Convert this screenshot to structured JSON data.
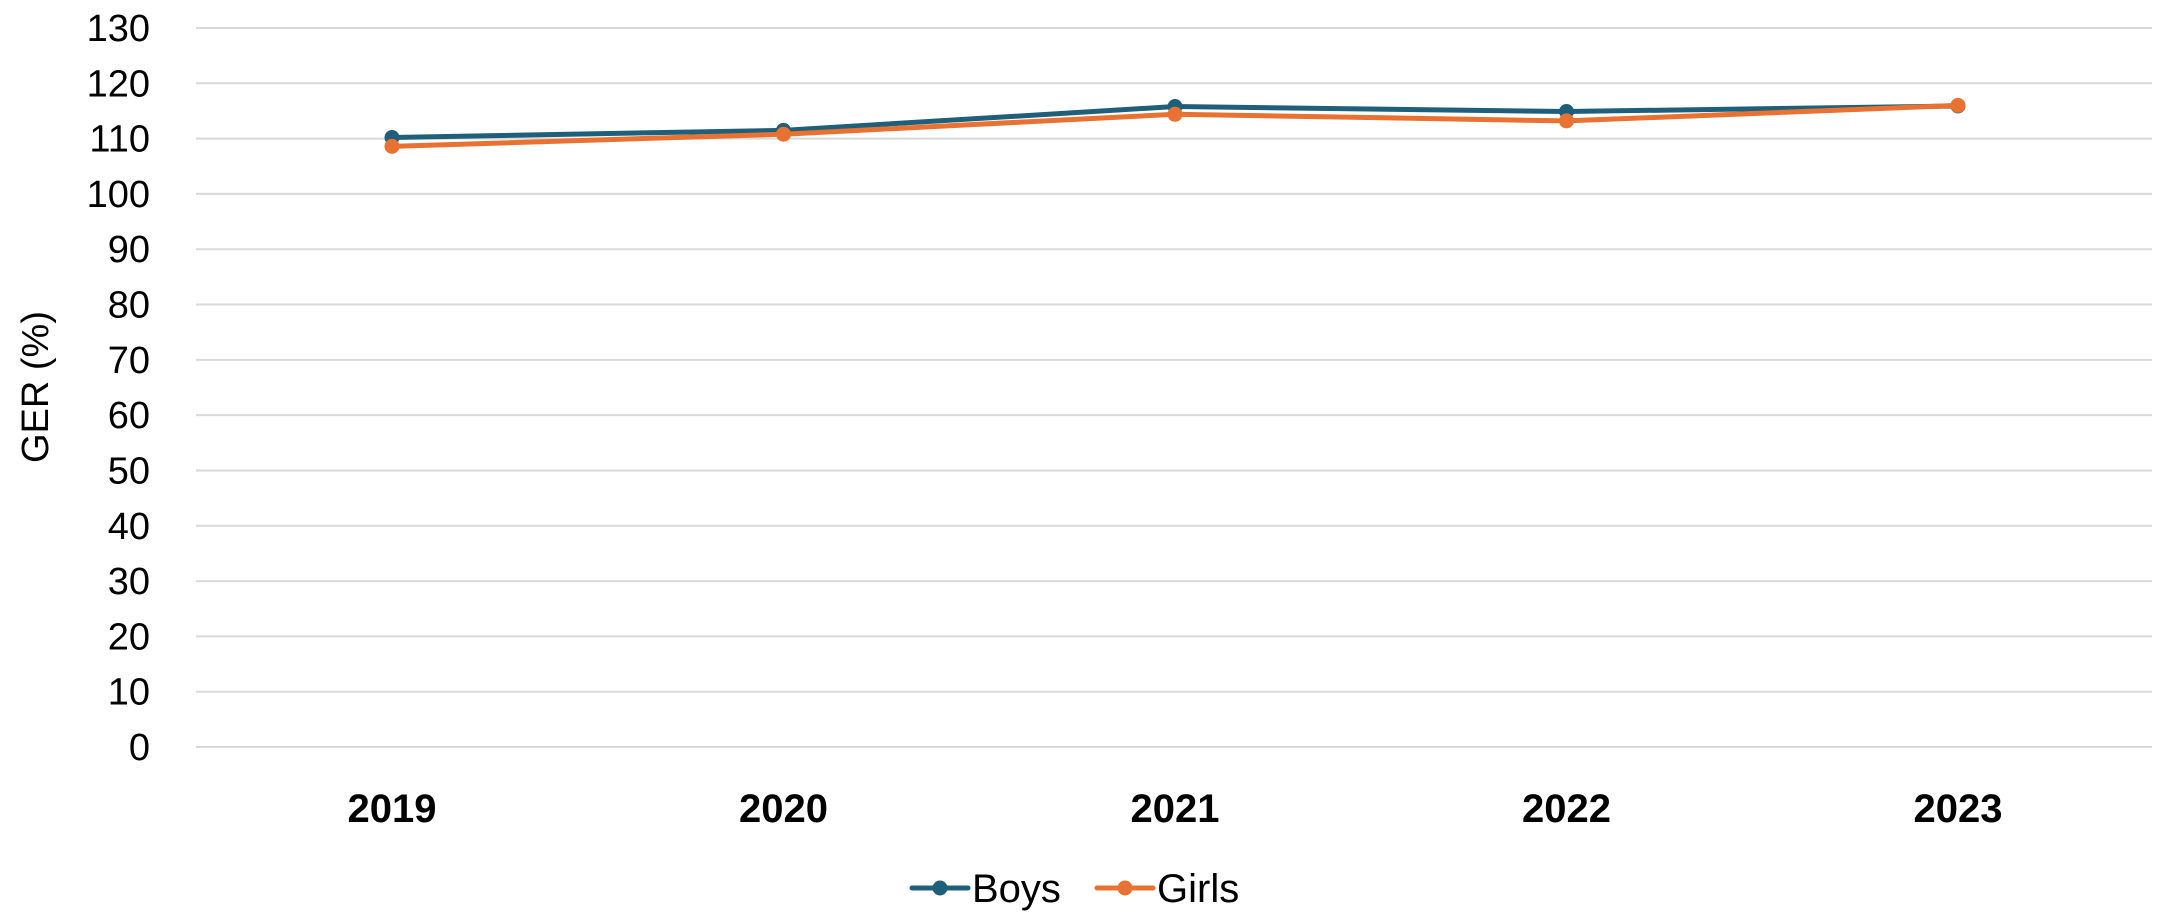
{
  "chart_data": {
    "type": "line",
    "categories": [
      "2019",
      "2020",
      "2021",
      "2022",
      "2023"
    ],
    "series": [
      {
        "name": "Boys",
        "values": [
          110.2,
          111.5,
          115.8,
          114.9,
          115.9
        ],
        "color": "#1F5F7A"
      },
      {
        "name": "Girls",
        "values": [
          108.6,
          110.8,
          114.4,
          113.2,
          116.0
        ],
        "color": "#E97132"
      }
    ],
    "title": "",
    "xlabel": "",
    "ylabel": "GER (%)",
    "ylim": [
      0,
      130
    ],
    "yticks": [
      "0",
      "10",
      "20",
      "30",
      "40",
      "50",
      "60",
      "70",
      "80",
      "90",
      "100",
      "110",
      "120",
      "130"
    ],
    "grid": true,
    "legend_position": "bottom"
  }
}
